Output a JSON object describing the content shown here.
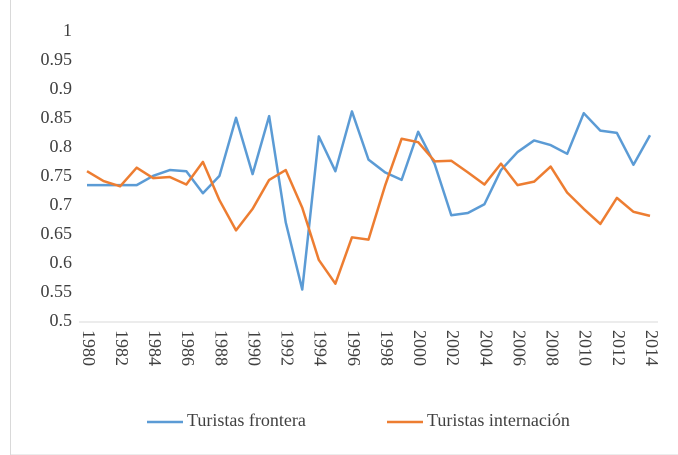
{
  "chart_data": {
    "type": "line",
    "x": [
      1980,
      1981,
      1982,
      1983,
      1984,
      1985,
      1986,
      1987,
      1988,
      1989,
      1990,
      1991,
      1992,
      1993,
      1994,
      1995,
      1996,
      1997,
      1998,
      1999,
      2000,
      2001,
      2002,
      2003,
      2004,
      2005,
      2006,
      2007,
      2008,
      2009,
      2010,
      2011,
      2012,
      2013,
      2014
    ],
    "xlim": [
      1980,
      2014
    ],
    "xticks": [
      1980,
      1982,
      1984,
      1986,
      1988,
      1990,
      1992,
      1994,
      1996,
      1998,
      2000,
      2002,
      2004,
      2006,
      2008,
      2010,
      2012,
      2014
    ],
    "ylim": [
      0.5,
      1
    ],
    "yticks": [
      0.5,
      0.55,
      0.6,
      0.65,
      0.7,
      0.75,
      0.8,
      0.85,
      0.9,
      0.95,
      1
    ],
    "series": [
      {
        "name": "Turistas frontera",
        "color": "#5b9bd5",
        "values": [
          0.736,
          0.736,
          0.736,
          0.736,
          0.752,
          0.762,
          0.76,
          0.722,
          0.752,
          0.852,
          0.755,
          0.855,
          0.672,
          0.556,
          0.82,
          0.76,
          0.863,
          0.78,
          0.758,
          0.745,
          0.828,
          0.772,
          0.684,
          0.688,
          0.703,
          0.762,
          0.793,
          0.813,
          0.805,
          0.79,
          0.86,
          0.83,
          0.826,
          0.771,
          0.822
        ]
      },
      {
        "name": "Turistas internación",
        "color": "#ed7d31",
        "values": [
          0.76,
          0.743,
          0.734,
          0.766,
          0.748,
          0.75,
          0.737,
          0.776,
          0.71,
          0.658,
          0.695,
          0.745,
          0.762,
          0.697,
          0.607,
          0.566,
          0.646,
          0.642,
          0.735,
          0.816,
          0.81,
          0.777,
          0.778,
          0.758,
          0.737,
          0.773,
          0.736,
          0.742,
          0.768,
          0.723,
          0.695,
          0.669,
          0.714,
          0.69,
          0.683
        ]
      }
    ]
  }
}
